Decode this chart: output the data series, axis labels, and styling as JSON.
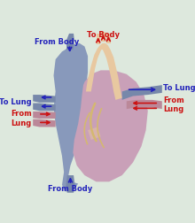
{
  "bg_color": "#dde8dd",
  "right_heart_color": "#8899bb",
  "left_heart_color": "#c9a0b8",
  "aorta_color": "#e8c8a0",
  "vena_color": "#7788aa",
  "pulm_vein_color": "#bb8899",
  "heart_dark_pink": "#b8809a",
  "coronary_color": "#d4b870",
  "red_col": "#cc1111",
  "blue_col": "#2222bb",
  "label_red": "#cc1111",
  "label_blue": "#2222bb",
  "labels": {
    "to_body_top": "To Body",
    "from_body_top": "From Body",
    "to_lung_left": "To Lung",
    "from_lung_left": "From\nLung",
    "to_lung_right": "To Lung",
    "from_lung_right": "From\nLung",
    "from_body_bottom": "From Body"
  },
  "figsize": [
    2.2,
    2.52
  ],
  "dpi": 100
}
